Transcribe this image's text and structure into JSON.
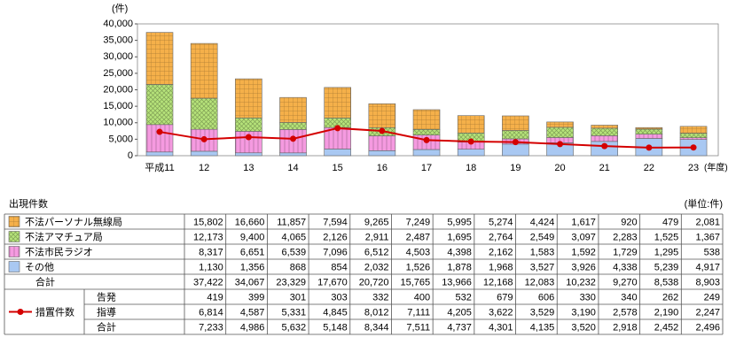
{
  "chart_data": {
    "type": "bar",
    "stacked": true,
    "y_unit": "(件)",
    "x_unit": "(年度)",
    "categories": [
      "平成11",
      "12",
      "13",
      "14",
      "15",
      "16",
      "17",
      "18",
      "19",
      "20",
      "21",
      "22",
      "23"
    ],
    "ylim": [
      0,
      40000
    ],
    "yticks": [
      0,
      {
        "value": 5000,
        "label": "5,000"
      },
      {
        "value": 10000,
        "label": "10,000"
      },
      {
        "value": 15000,
        "label": "15,000"
      },
      {
        "value": 20000,
        "label": "20,000"
      },
      {
        "value": 25000,
        "label": "25,000"
      },
      {
        "value": 30000,
        "label": "30,000"
      },
      {
        "value": 35000,
        "label": "35,000"
      },
      {
        "value": 40000,
        "label": "40,000"
      }
    ],
    "series": [
      {
        "name": "不法パーソナル無線局",
        "color": "#f5b04a",
        "values": [
          15802,
          16660,
          11857,
          7594,
          9265,
          7249,
          5995,
          5274,
          4424,
          1617,
          920,
          479,
          2081
        ],
        "value_labels": [
          "15,802",
          "16,660",
          "11,857",
          "7,594",
          "9,265",
          "7,249",
          "5,995",
          "5,274",
          "4,424",
          "1,617",
          "920",
          "479",
          "2,081"
        ]
      },
      {
        "name": "不法アマチュア局",
        "color": "#b6e37a",
        "values": [
          12173,
          9400,
          4065,
          2126,
          2911,
          2487,
          1695,
          2764,
          2549,
          3097,
          2283,
          1525,
          1367
        ],
        "value_labels": [
          "12,173",
          "9,400",
          "4,065",
          "2,126",
          "2,911",
          "2,487",
          "1,695",
          "2,764",
          "2,549",
          "3,097",
          "2,283",
          "1,525",
          "1,367"
        ]
      },
      {
        "name": "不法市民ラジオ",
        "color": "#f59ae0",
        "values": [
          8317,
          6651,
          6539,
          7096,
          6512,
          4503,
          4398,
          2162,
          1583,
          1592,
          1729,
          1295,
          538
        ],
        "value_labels": [
          "8,317",
          "6,651",
          "6,539",
          "7,096",
          "6,512",
          "4,503",
          "4,398",
          "2,162",
          "1,583",
          "1,592",
          "1,729",
          "1,295",
          "538"
        ]
      },
      {
        "name": "その他",
        "color": "#a9c8f2",
        "values": [
          1130,
          1356,
          868,
          854,
          2032,
          1526,
          1878,
          1968,
          3527,
          3926,
          4338,
          5239,
          4917
        ],
        "value_labels": [
          "1,130",
          "1,356",
          "868",
          "854",
          "2,032",
          "1,526",
          "1,878",
          "1,968",
          "3,527",
          "3,926",
          "4,338",
          "5,239",
          "4,917"
        ]
      }
    ],
    "line": {
      "name": "合計",
      "color": "#d40000",
      "values": [
        7233,
        4986,
        5632,
        5148,
        8344,
        7511,
        4737,
        4301,
        4135,
        3520,
        2918,
        2452,
        2496
      ],
      "value_labels": [
        "7,233",
        "4,986",
        "5,632",
        "5,148",
        "8,344",
        "7,511",
        "4,737",
        "4,301",
        "4,135",
        "3,520",
        "2,918",
        "2,452",
        "2,496"
      ]
    },
    "table": {
      "title": "出現件数",
      "unit": "(単位:件)",
      "total": {
        "name": "合計",
        "values": [
          37422,
          34067,
          23329,
          17670,
          20720,
          15765,
          13966,
          12168,
          12083,
          10232,
          9270,
          8538,
          8903
        ],
        "value_labels": [
          "37,422",
          "34,067",
          "23,329",
          "17,670",
          "20,720",
          "15,765",
          "13,966",
          "12,168",
          "12,083",
          "10,232",
          "9,270",
          "8,538",
          "8,903"
        ]
      },
      "measures": {
        "name": "措置件数",
        "rows": [
          {
            "name": "告発",
            "values": [
              419,
              399,
              301,
              303,
              332,
              400,
              532,
              679,
              606,
              330,
              340,
              262,
              249
            ],
            "value_labels": [
              "419",
              "399",
              "301",
              "303",
              "332",
              "400",
              "532",
              "679",
              "606",
              "330",
              "340",
              "262",
              "249"
            ]
          },
          {
            "name": "指導",
            "values": [
              6814,
              4587,
              5331,
              4845,
              8012,
              7111,
              4205,
              3622,
              3529,
              3190,
              2578,
              2190,
              2247
            ],
            "value_labels": [
              "6,814",
              "4,587",
              "5,331",
              "4,845",
              "8,012",
              "7,111",
              "4,205",
              "3,622",
              "3,529",
              "3,190",
              "2,578",
              "2,190",
              "2,247"
            ]
          }
        ]
      }
    }
  }
}
